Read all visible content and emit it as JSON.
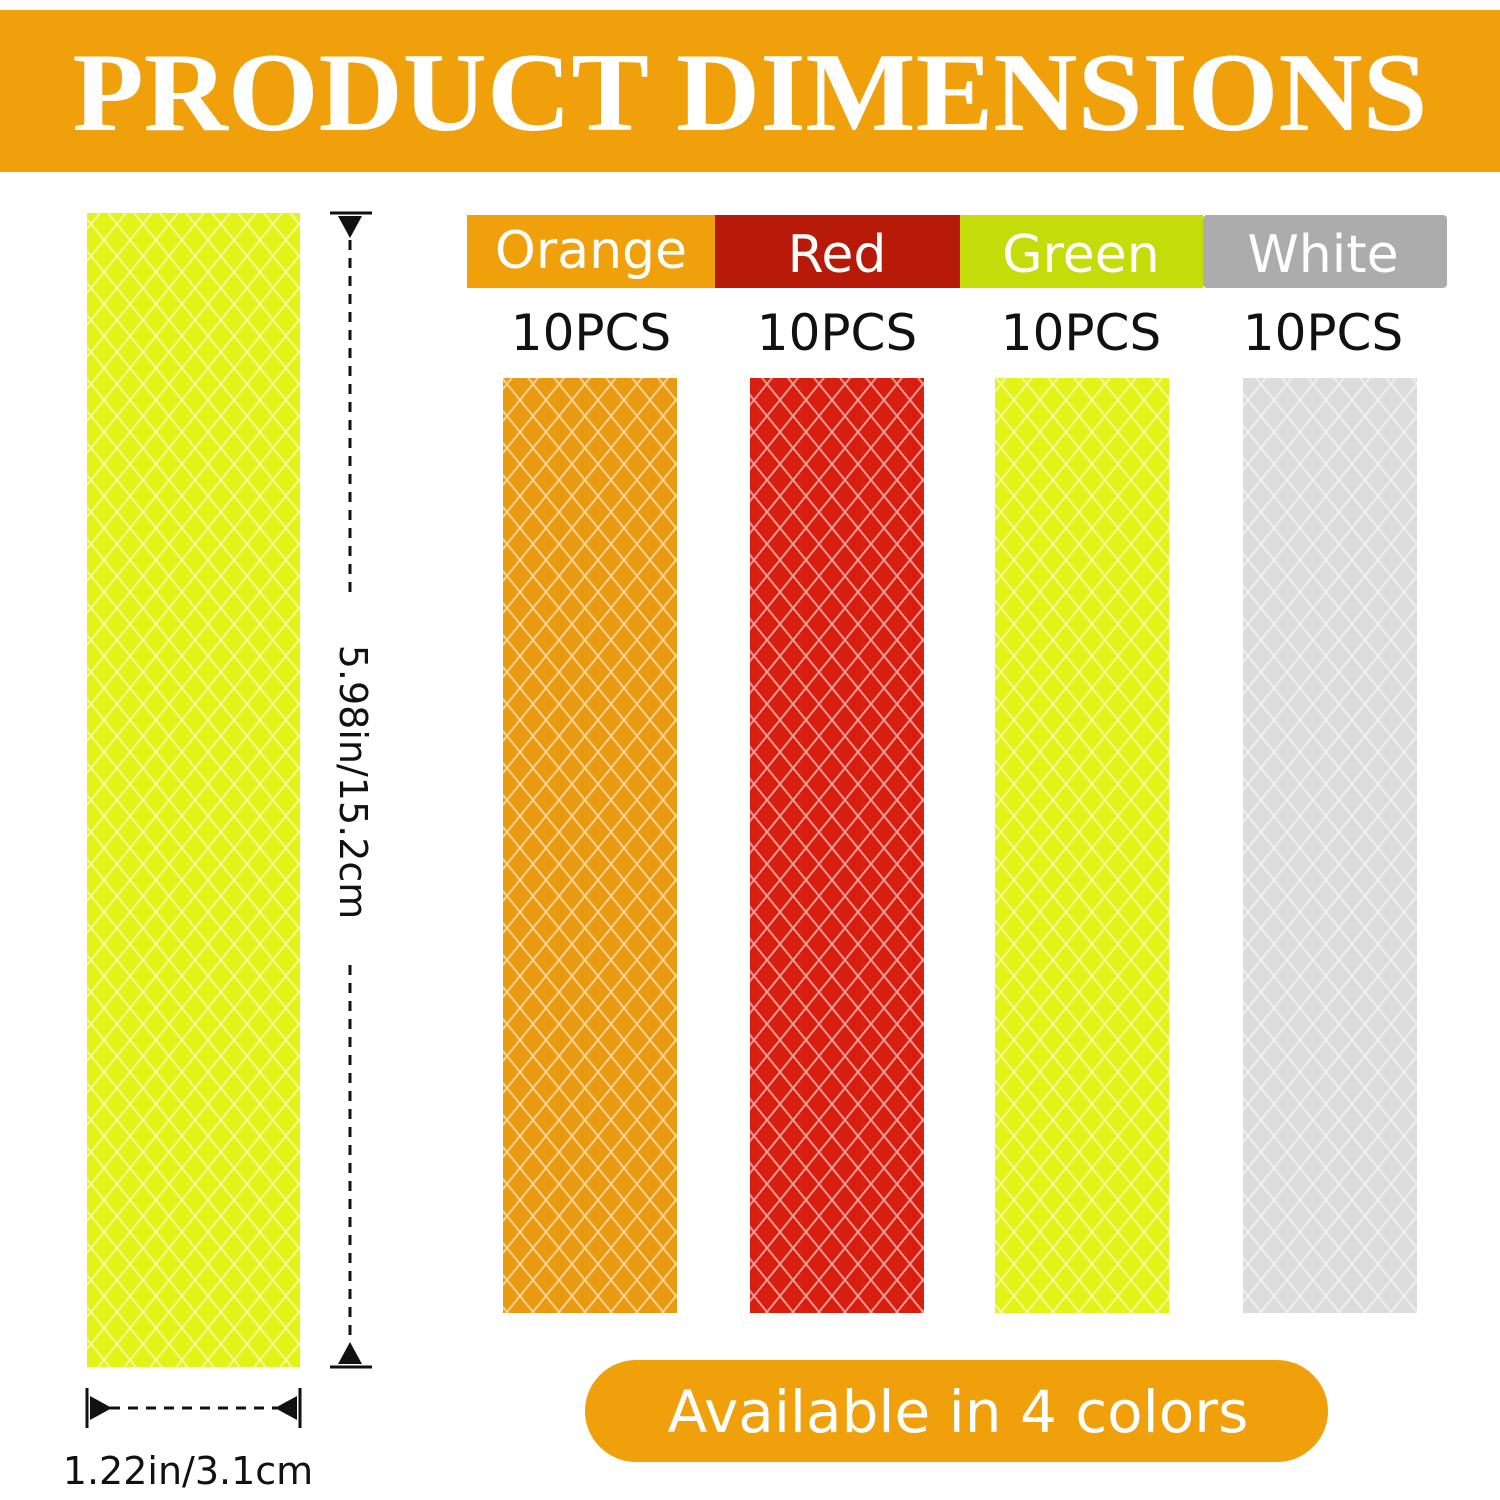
{
  "header": {
    "title": "PRODUCT DIMENSIONS"
  },
  "main_strip": {
    "length": "5.98in/15.2cm",
    "width": "1.22in/3.1cm"
  },
  "variants": [
    {
      "name": "Orange",
      "quantity": "10PCS"
    },
    {
      "name": "Red",
      "quantity": "10PCS"
    },
    {
      "name": "Green",
      "quantity": "10PCS"
    },
    {
      "name": "White",
      "quantity": "10PCS"
    }
  ],
  "footer": {
    "badge": "Available in 4 colors"
  }
}
